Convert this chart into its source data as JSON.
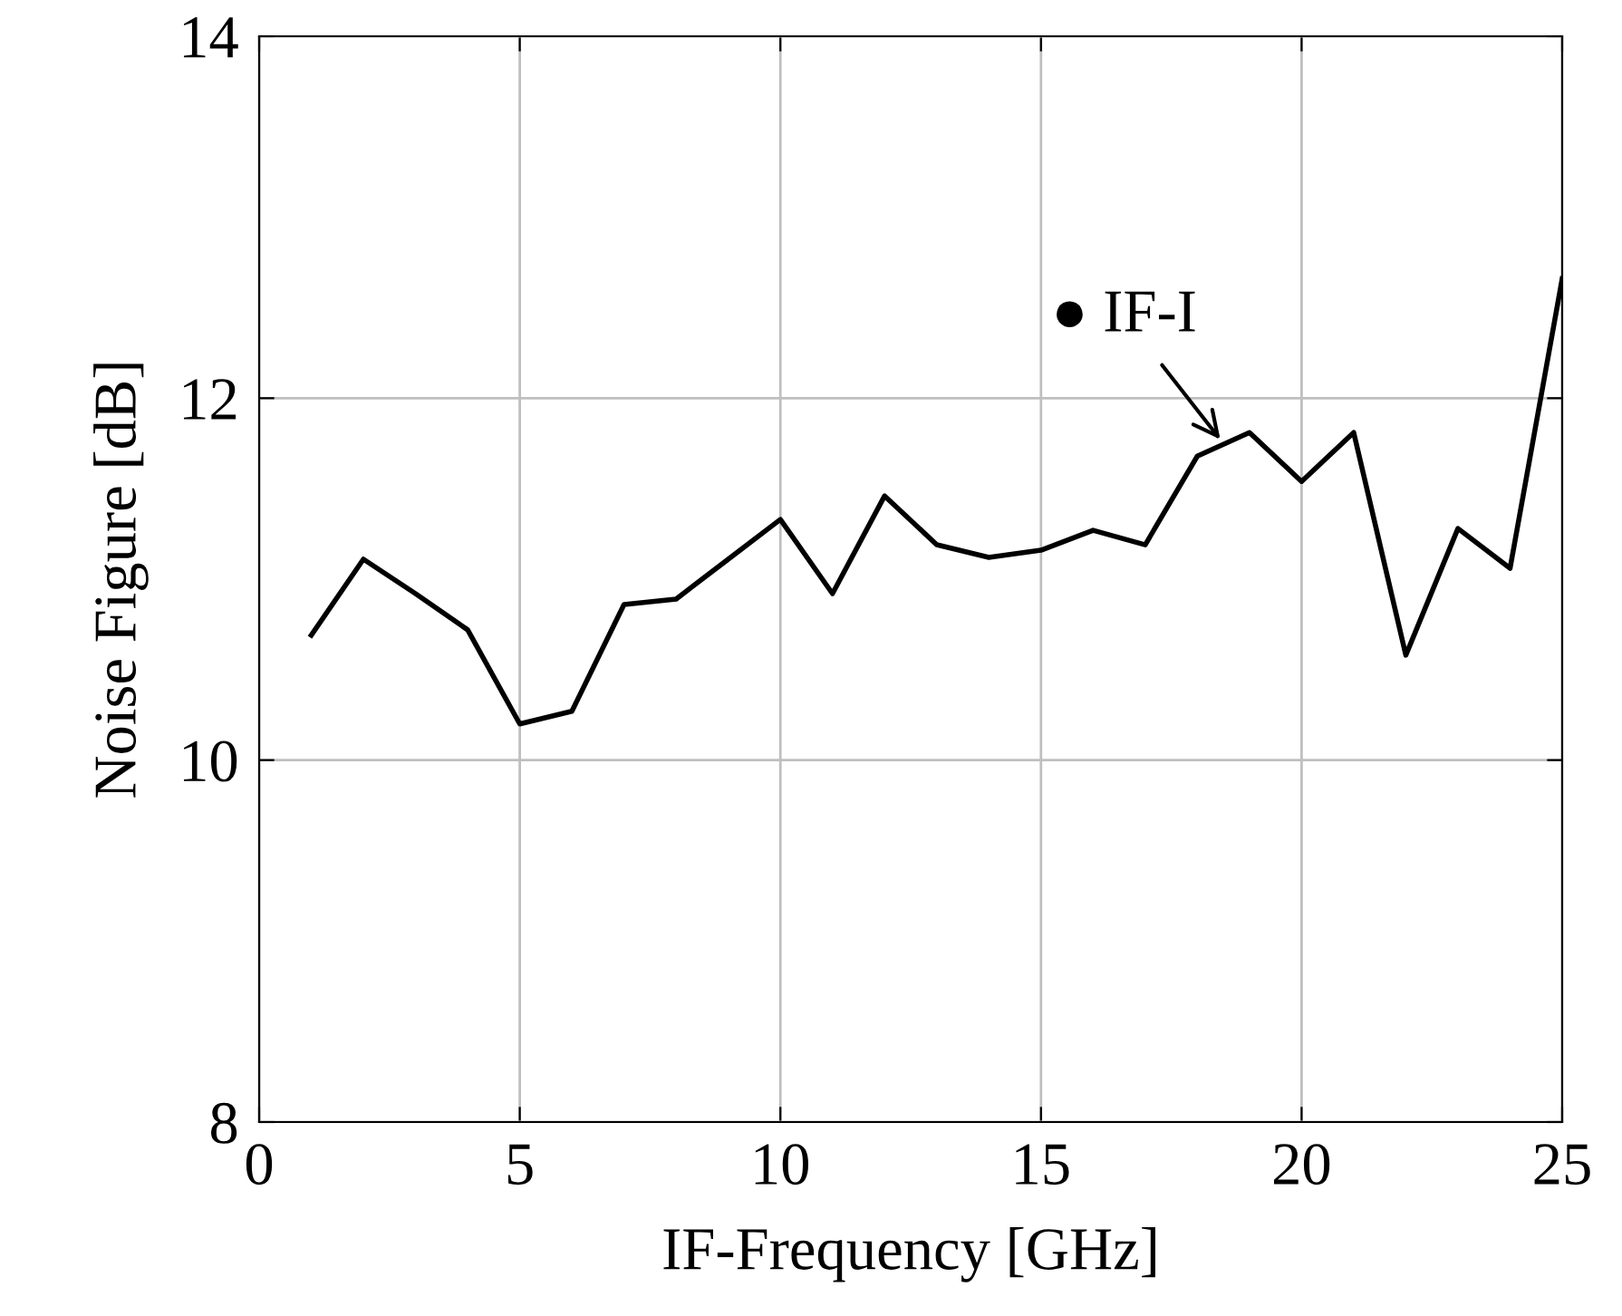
{
  "chart_data": {
    "type": "line",
    "xlabel": "IF-Frequency [GHz]",
    "ylabel": "Noise Figure [dB]",
    "x": [
      1,
      2,
      3,
      4,
      5,
      6,
      7,
      8,
      9,
      10,
      11,
      12,
      13,
      14,
      15,
      16,
      17,
      18,
      19,
      20,
      21,
      22,
      23,
      24,
      25
    ],
    "series": [
      {
        "color": "#000000",
        "values": [
          10.69,
          11.11,
          10.92,
          10.72,
          10.2,
          10.27,
          10.86,
          10.89,
          11.11,
          11.33,
          10.92,
          11.46,
          11.19,
          11.12,
          11.16,
          11.27,
          11.19,
          11.68,
          11.81,
          11.54,
          11.81,
          10.58,
          11.28,
          11.06,
          12.66
        ]
      }
    ],
    "xlim": [
      0,
      25
    ],
    "ylim": [
      8,
      14
    ],
    "xticks": [
      0,
      5,
      10,
      15,
      20,
      25
    ],
    "yticks": [
      8,
      10,
      12,
      14
    ],
    "grid": true,
    "marker": "none",
    "line_style": "solid",
    "annotations": [
      {
        "text": "● IF-I",
        "x": 18.5,
        "y": 11.75
      }
    ]
  }
}
